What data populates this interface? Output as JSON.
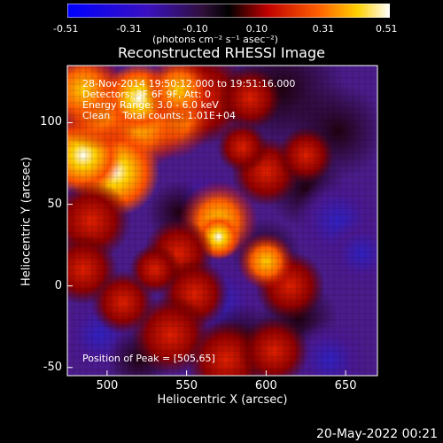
{
  "title": "Reconstructed RHESSI Image",
  "colorbar": {
    "ticks": [
      "-0.51",
      "-0.31",
      "-0.10",
      "0.10",
      "0.31",
      "0.51"
    ],
    "tick_values": [
      -0.51,
      -0.31,
      -0.1,
      0.1,
      0.31,
      0.51
    ],
    "units_label": "(photons cm⁻² s⁻¹ asec⁻²)",
    "colormap_name": "blue-purple-red-yellow-white"
  },
  "annotations": {
    "line1": "28-Nov-2014 19:50:12.000 to 19:51:16.000",
    "line2": "Detectors: 3F 6F 9F, Att: 0",
    "line3": "Energy Range: 3.0 - 6.0 keV",
    "line4": "Clean    Total counts: 1.01E+04",
    "peak": "Position of Peak = [505,65]"
  },
  "footer": "20-May-2022 00:21",
  "chart_data": {
    "type": "heatmap",
    "title": "Reconstructed RHESSI Image",
    "xlabel": "Heliocentric X (arcsec)",
    "ylabel": "Heliocentric Y (arcsec)",
    "xlim": [
      475,
      670
    ],
    "ylim": [
      -55,
      135
    ],
    "xticks": [
      500,
      550,
      600,
      650
    ],
    "yticks": [
      -50,
      0,
      50,
      100
    ],
    "value_range": [
      -0.51,
      0.51
    ],
    "peak_position": [
      505,
      65
    ],
    "grid": false,
    "features": [
      {
        "description": "bright arc",
        "x": 500,
        "y": 70,
        "value": 0.51
      },
      {
        "description": "bright arc",
        "x": 535,
        "y": 100,
        "value": 0.45
      },
      {
        "description": "central blob",
        "x": 570,
        "y": 35,
        "value": 0.4
      },
      {
        "description": "ring",
        "x": 555,
        "y": 0,
        "value": 0.25
      },
      {
        "description": "dark patches",
        "x": 640,
        "y": 40,
        "value": -0.45
      }
    ]
  }
}
